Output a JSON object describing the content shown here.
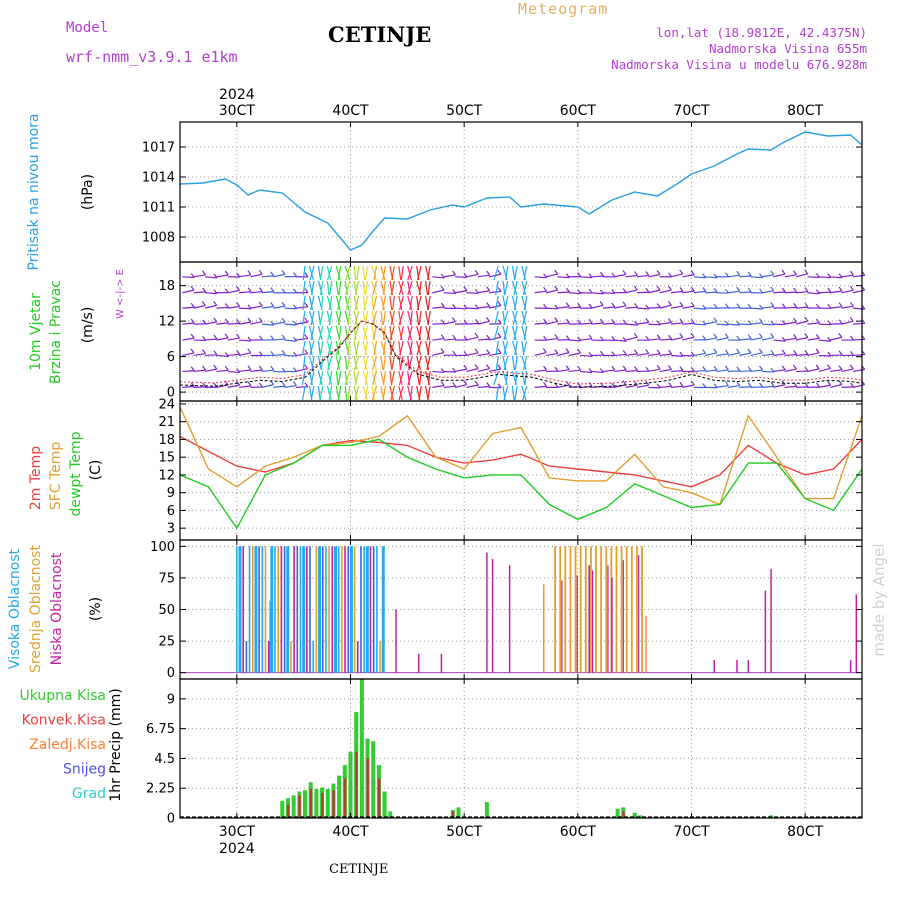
{
  "header": {
    "model_label": "Model",
    "model_name": "wrf-nmm_v3.9.1  e1km",
    "title": "CETINJE",
    "meteogram_label": "Meteogram",
    "lonlat": "lon,lat (18.9812E, 42.4375N)",
    "elevation": "Nadmorska Visina 655m",
    "model_elevation": "Nadmorska Visina u modelu 676.928m",
    "year": "2024",
    "footer_station": "CETINJE",
    "credit": "made by Angel"
  },
  "colors": {
    "pressure": "#2aa0e0",
    "temp2m": "#ee4040",
    "sfc": "#e0a030",
    "dew": "#22cc22",
    "high_cloud": "#22aaee",
    "mid_cloud": "#e0a030",
    "low_cloud": "#c020a0",
    "total_precip": "#33cc33",
    "conv_precip": "#ee4040",
    "frozen_precip": "#ff8030",
    "snow": "#5050ee",
    "graupel": "#33cccc",
    "label_purple": "#b040d0"
  },
  "time_axis": {
    "day_labels": [
      "30CT",
      "40CT",
      "50CT",
      "60CT",
      "70CT",
      "80CT"
    ],
    "start_label": "2024"
  },
  "chart_data": [
    {
      "id": "pressure",
      "type": "line",
      "ylabel": "(hPa)",
      "side_label": "Pritisak na nivou mora",
      "yticks": [
        1008,
        1011,
        1014,
        1017
      ],
      "ylim": [
        1005.5,
        1019.5
      ],
      "x_days": [
        2.5,
        2.7,
        2.9,
        3.0,
        3.1,
        3.2,
        3.4,
        3.6,
        3.8,
        4.0,
        4.1,
        4.2,
        4.3,
        4.5,
        4.7,
        4.9,
        5.0,
        5.2,
        5.4,
        5.5,
        5.7,
        5.9,
        6.0,
        6.1,
        6.3,
        6.5,
        6.7,
        6.9,
        7.0,
        7.2,
        7.4,
        7.5,
        7.7,
        7.8,
        8.0,
        8.2,
        8.4,
        8.5
      ],
      "values": [
        1013.3,
        1013.4,
        1013.8,
        1013.2,
        1012.2,
        1012.7,
        1012.4,
        1010.5,
        1009.4,
        1006.7,
        1007.2,
        1008.6,
        1009.9,
        1009.8,
        1010.7,
        1011.2,
        1011.0,
        1011.9,
        1012.0,
        1011.0,
        1011.3,
        1011.1,
        1011.0,
        1010.3,
        1011.7,
        1012.5,
        1012.1,
        1013.5,
        1014.3,
        1015.1,
        1016.3,
        1016.8,
        1016.7,
        1017.4,
        1018.5,
        1018.1,
        1018.2,
        1017.2
      ]
    },
    {
      "id": "wind",
      "type": "line",
      "ylabel": "(m/s)",
      "side_label_1": "10m Vjetar",
      "side_label_2": "Brzina i Pravac",
      "compass": "W <-|-> E",
      "yticks": [
        0,
        6,
        12,
        18
      ],
      "ylim": [
        -1.5,
        22
      ],
      "x_days": [
        2.5,
        2.8,
        3.0,
        3.2,
        3.4,
        3.6,
        3.8,
        3.9,
        4.0,
        4.1,
        4.2,
        4.3,
        4.4,
        4.6,
        4.8,
        5.0,
        5.3,
        5.6,
        5.8,
        6.0,
        6.3,
        6.6,
        6.8,
        7.0,
        7.2,
        7.4,
        7.6,
        7.8,
        8.0,
        8.2,
        8.4,
        8.5
      ],
      "values": [
        1.2,
        1.0,
        1.5,
        2.0,
        1.8,
        2.5,
        6.0,
        7.5,
        10.0,
        12.0,
        11.5,
        10.0,
        6.0,
        3.0,
        2.0,
        2.0,
        3.0,
        2.5,
        1.5,
        0.8,
        1.0,
        1.5,
        2.0,
        3.0,
        2.0,
        1.8,
        2.0,
        1.5,
        1.5,
        2.0,
        1.8,
        1.5
      ],
      "wind_band_cols": [
        [
          3.6,
          4.7
        ],
        [
          5.3,
          5.55
        ]
      ]
    },
    {
      "id": "temperature",
      "type": "line",
      "ylabel": "(C)",
      "series_labels": [
        "2m Temp",
        "SFC Temp",
        "dewpt Temp"
      ],
      "yticks": [
        3,
        6,
        9,
        12,
        15,
        18,
        21,
        24
      ],
      "ylim": [
        1,
        24.5
      ],
      "x_days": [
        2.5,
        2.75,
        3.0,
        3.25,
        3.5,
        3.75,
        4.0,
        4.25,
        4.5,
        4.75,
        5.0,
        5.25,
        5.5,
        5.75,
        6.0,
        6.25,
        6.5,
        6.75,
        7.0,
        7.25,
        7.5,
        7.75,
        8.0,
        8.25,
        8.5
      ],
      "temp2m": [
        18.5,
        16.0,
        13.5,
        12.5,
        14.0,
        17.0,
        17.8,
        17.5,
        17.0,
        15.0,
        14.0,
        14.5,
        15.5,
        13.5,
        13.0,
        12.5,
        12.0,
        11.0,
        10.0,
        12.0,
        17.0,
        14.0,
        12.0,
        13.0,
        18.0
      ],
      "sfc": [
        23.5,
        13.0,
        10.0,
        13.5,
        15.0,
        17.0,
        17.5,
        18.5,
        22.0,
        15.0,
        13.0,
        19.0,
        20.0,
        11.5,
        11.0,
        11.0,
        15.5,
        10.0,
        9.0,
        7.0,
        22.0,
        15.0,
        8.0,
        8.0,
        22.0
      ],
      "dew": [
        12.0,
        10.0,
        3.0,
        12.0,
        14.0,
        17.0,
        17.0,
        18.0,
        15.0,
        13.0,
        11.5,
        12.0,
        12.0,
        7.0,
        4.5,
        6.5,
        10.5,
        8.5,
        6.5,
        7.0,
        14.0,
        14.0,
        8.0,
        6.0,
        13.0
      ]
    },
    {
      "id": "cloud",
      "type": "bar",
      "ylabel": "(%)",
      "series_labels": [
        "Visoka Oblacnost",
        "Srednja Oblacnost",
        "Niska Oblacnost"
      ],
      "yticks": [
        0,
        25,
        50,
        75,
        100
      ],
      "ylim": [
        -5,
        105
      ],
      "full_bands_days": [
        [
          3.0,
          4.3
        ]
      ],
      "mid_band_days": [
        [
          5.8,
          6.6
        ]
      ],
      "scattered_low": [
        [
          4.4,
          50
        ],
        [
          4.6,
          15
        ],
        [
          4.8,
          15
        ],
        [
          5.2,
          95
        ],
        [
          5.25,
          90
        ],
        [
          5.4,
          85
        ],
        [
          5.7,
          70
        ],
        [
          6.1,
          85
        ],
        [
          6.3,
          75
        ],
        [
          6.6,
          45
        ],
        [
          7.2,
          10
        ],
        [
          7.4,
          10
        ],
        [
          7.5,
          10
        ],
        [
          7.65,
          65
        ],
        [
          7.7,
          82
        ],
        [
          8.4,
          10
        ],
        [
          8.45,
          62
        ]
      ]
    },
    {
      "id": "precip",
      "type": "bar",
      "ylabel": "1hr Precip (mm)",
      "series_labels": [
        "Ukupna Kisa",
        "Konvek.Kisa",
        "Zaledj.Kisa",
        "Snijeg",
        "Grad"
      ],
      "yticks": [
        0,
        2.25,
        4.5,
        6.75,
        9
      ],
      "ylim": [
        0,
        10.5
      ],
      "total": [
        [
          3.4,
          1.3
        ],
        [
          3.45,
          1.5
        ],
        [
          3.5,
          1.7
        ],
        [
          3.55,
          2.0
        ],
        [
          3.6,
          2.1
        ],
        [
          3.65,
          2.7
        ],
        [
          3.7,
          2.2
        ],
        [
          3.75,
          2.3
        ],
        [
          3.8,
          2.2
        ],
        [
          3.85,
          2.6
        ],
        [
          3.9,
          3.2
        ],
        [
          3.95,
          4.0
        ],
        [
          4.0,
          5.0
        ],
        [
          4.05,
          8.0
        ],
        [
          4.1,
          10.5
        ],
        [
          4.15,
          6.0
        ],
        [
          4.2,
          5.8
        ],
        [
          4.25,
          4.0
        ],
        [
          4.3,
          2.0
        ],
        [
          4.35,
          0.5
        ],
        [
          4.9,
          0.6
        ],
        [
          4.95,
          0.8
        ],
        [
          5.2,
          1.2
        ],
        [
          6.35,
          0.7
        ],
        [
          6.4,
          0.8
        ],
        [
          6.5,
          0.4
        ],
        [
          6.55,
          0.2
        ],
        [
          7.7,
          0.2
        ]
      ],
      "conv": [
        [
          3.45,
          1.0
        ],
        [
          3.55,
          1.7
        ],
        [
          3.65,
          2.2
        ],
        [
          3.75,
          1.9
        ],
        [
          3.85,
          2.1
        ],
        [
          3.95,
          3.0
        ],
        [
          4.05,
          5.0
        ],
        [
          4.15,
          4.5
        ],
        [
          4.25,
          3.0
        ],
        [
          4.9,
          0.5
        ],
        [
          6.4,
          0.5
        ]
      ]
    }
  ]
}
